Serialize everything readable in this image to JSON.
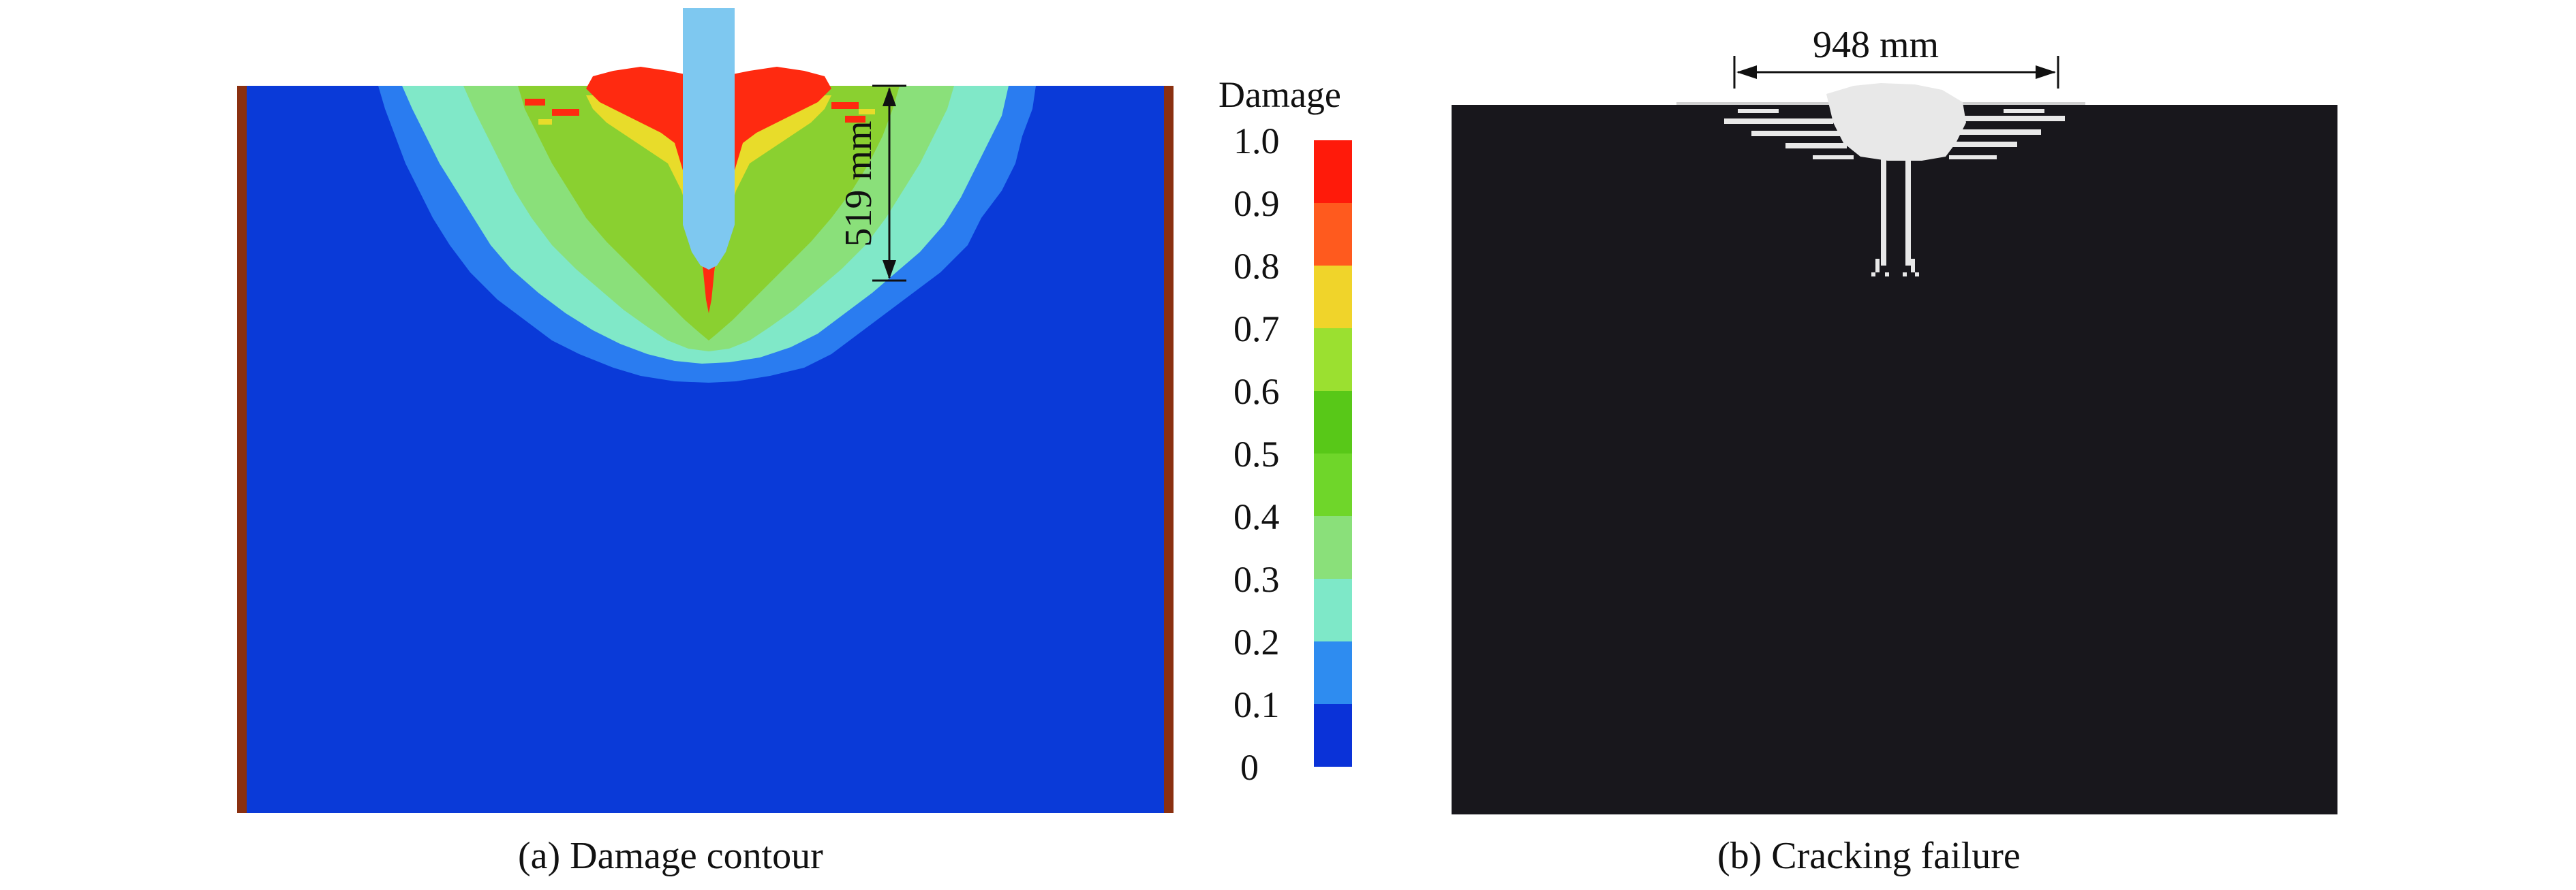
{
  "panel_a": {
    "caption": "(a) Damage contour",
    "dimension_label": "519 mm",
    "colorbar": {
      "title": "Damage",
      "ticks": [
        "1.0",
        "0.9",
        "0.8",
        "0.7",
        "0.6",
        "0.5",
        "0.4",
        "0.3",
        "0.2",
        "0.1",
        "0"
      ],
      "colors": [
        "#ff1a0a",
        "#ff5a1e",
        "#f0d42a",
        "#9be030",
        "#58c818",
        "#6fd62a",
        "#8ae07a",
        "#7ee8c8",
        "#2e8cf0",
        "#1f6ae6",
        "#0a32d8"
      ]
    },
    "colors": {
      "background": "#0a3ad8",
      "border": "#8a3010",
      "indenter": "#7ec8f0",
      "red": "#ff2a10",
      "yellow": "#e8dc2a",
      "green": "#8ad030",
      "cyan": "#80e8c8",
      "lightblue": "#2a8af0"
    }
  },
  "panel_b": {
    "caption": "(b) Cracking failure",
    "dimension_label": "948 mm",
    "colors": {
      "background": "#18171c",
      "crack": "#e8e8e8"
    }
  }
}
